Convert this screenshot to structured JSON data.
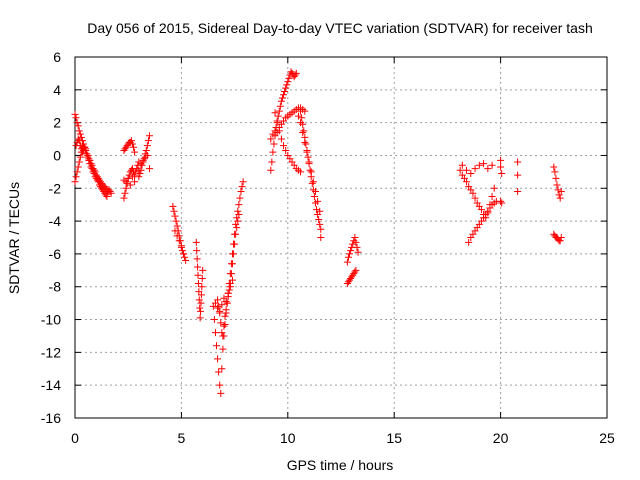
{
  "chart_data": {
    "type": "scatter",
    "title": "Day 056 of 2015, Sidereal Day-to-day VTEC variation (SDTVAR) for receiver tash",
    "xlabel": "GPS time / hours",
    "ylabel": "SDTVAR / TECUs",
    "xlim": [
      0,
      25
    ],
    "ylim": [
      -16,
      6
    ],
    "x_ticks": [
      0,
      5,
      10,
      15,
      20,
      25
    ],
    "y_ticks": [
      -16,
      -14,
      -12,
      -10,
      -8,
      -6,
      -4,
      -2,
      0,
      2,
      4,
      6
    ],
    "grid": true,
    "marker": "+",
    "color": "#ff0000",
    "series": [
      {
        "x": [
          0.0,
          0.05,
          0.1,
          0.15,
          0.2,
          0.25,
          0.3,
          0.35,
          0.4,
          0.45,
          0.5,
          0.55,
          0.6,
          0.65,
          0.7,
          0.75,
          0.8,
          0.85,
          0.9,
          0.95,
          1.0,
          1.05,
          1.1,
          1.15,
          1.2,
          1.25,
          1.3,
          1.35,
          1.4,
          1.45,
          1.5,
          1.55,
          1.6,
          1.65,
          1.7
        ],
        "y": [
          2.5,
          2.3,
          2.0,
          1.8,
          1.5,
          1.3,
          1.1,
          0.9,
          0.7,
          0.5,
          0.3,
          0.1,
          0.0,
          -0.2,
          -0.3,
          -0.5,
          -0.6,
          -0.8,
          -0.9,
          -1.0,
          -1.2,
          -1.3,
          -1.4,
          -1.5,
          -1.6,
          -1.7,
          -1.8,
          -1.9,
          -1.9,
          -2.0,
          -2.1,
          -2.2,
          -2.1,
          -2.2,
          -2.3
        ]
      },
      {
        "x": [
          0.0,
          0.05,
          0.1,
          0.15,
          0.2,
          0.25,
          0.3,
          0.35,
          0.4,
          0.45,
          0.5,
          0.55,
          0.6,
          0.65,
          0.7,
          0.75,
          0.8,
          0.85,
          0.9,
          0.95,
          1.0,
          1.05,
          1.1,
          1.15,
          1.2,
          1.25,
          1.3,
          1.35,
          1.4,
          1.45,
          1.5
        ],
        "y": [
          -1.6,
          -1.3,
          -1.0,
          -0.7,
          -0.4,
          -0.1,
          0.2,
          0.5,
          0.7,
          0.5,
          0.3,
          0.1,
          -0.1,
          -0.3,
          -0.5,
          -0.7,
          -0.8,
          -1.0,
          -1.1,
          -1.3,
          -1.4,
          -1.5,
          -1.6,
          -1.8,
          -1.9,
          -2.0,
          -2.1,
          -2.2,
          -2.3,
          -2.4,
          -2.5
        ]
      },
      {
        "x": [
          0.05,
          0.1,
          0.15,
          0.2,
          0.25,
          0.3,
          0.35,
          0.4,
          0.45,
          0.5
        ],
        "y": [
          0.6,
          0.8,
          1.0,
          0.9,
          0.6,
          0.4,
          0.2,
          0.3,
          0.5,
          0.4
        ]
      },
      {
        "x": [
          2.3,
          2.35,
          2.4,
          2.45,
          2.5,
          2.55,
          2.6,
          2.65,
          2.7,
          2.75,
          2.8,
          2.85,
          2.9,
          2.95,
          3.0
        ],
        "y": [
          -2.6,
          -2.3,
          -2.0,
          -1.7,
          -1.4,
          -1.2,
          -1.0,
          -0.9,
          -0.8,
          -1.0,
          -1.2,
          -1.0,
          -0.8,
          -0.6,
          -0.4
        ]
      },
      {
        "x": [
          2.3,
          2.35,
          2.4,
          2.45,
          2.5,
          2.55,
          2.6,
          2.65,
          2.7,
          2.75,
          2.8
        ],
        "y": [
          0.3,
          0.4,
          0.5,
          0.6,
          0.7,
          0.8,
          0.8,
          0.9,
          0.7,
          0.5,
          0.2
        ]
      },
      {
        "x": [
          2.3,
          2.4,
          2.5,
          2.6,
          2.7,
          2.8
        ],
        "y": [
          -1.5,
          -1.6,
          -1.4,
          -1.8,
          -1.3,
          -1.6
        ]
      },
      {
        "x": [
          3.0,
          3.05,
          3.1,
          3.15,
          3.2,
          3.25,
          3.3,
          3.35,
          3.4,
          3.45,
          3.5
        ],
        "y": [
          -1.3,
          -1.1,
          -0.9,
          -0.6,
          -0.4,
          -0.2,
          0.1,
          0.3,
          0.6,
          0.9,
          1.2
        ]
      },
      {
        "x": [
          3.0,
          3.1,
          3.2,
          3.3,
          3.4,
          3.5
        ],
        "y": [
          -0.9,
          -0.5,
          -0.3,
          -0.1,
          0.0,
          -0.8
        ]
      },
      {
        "x": [
          4.6,
          4.65,
          4.7,
          4.75,
          4.8,
          4.85,
          4.9,
          4.95,
          5.0,
          5.05,
          5.1,
          5.15,
          5.2
        ],
        "y": [
          -3.1,
          -3.4,
          -3.7,
          -4.0,
          -4.3,
          -4.6,
          -4.9,
          -5.2,
          -5.5,
          -5.8,
          -6.0,
          -6.2,
          -6.4
        ]
      },
      {
        "x": [
          4.7,
          4.8,
          4.9,
          5.0,
          5.1
        ],
        "y": [
          -4.6,
          -4.9,
          -5.2,
          -5.6,
          -6.0
        ]
      },
      {
        "x": [
          5.7,
          5.72,
          5.74,
          5.76,
          5.78,
          5.8,
          5.82,
          5.84,
          5.86,
          5.88,
          5.9,
          5.92,
          5.94,
          5.96,
          5.98,
          6.0
        ],
        "y": [
          -5.3,
          -5.8,
          -6.3,
          -6.8,
          -7.3,
          -7.8,
          -8.3,
          -8.8,
          -9.3,
          -9.9,
          -9.5,
          -9.0,
          -8.5,
          -8.0,
          -7.5,
          -7.0
        ]
      },
      {
        "x": [
          6.5,
          6.55,
          6.6,
          6.65,
          6.7,
          6.75,
          6.8,
          6.85,
          6.9,
          6.95,
          7.0,
          7.05,
          7.1,
          7.15,
          7.2,
          7.25,
          7.3,
          7.35,
          7.4,
          7.45,
          7.5,
          7.55,
          7.6,
          7.65,
          7.7,
          7.75,
          7.8,
          7.85,
          7.9
        ],
        "y": [
          -9.2,
          -10.0,
          -10.8,
          -11.6,
          -12.4,
          -13.2,
          -14.0,
          -14.5,
          -13.0,
          -11.8,
          -11.0,
          -10.3,
          -9.6,
          -9.0,
          -8.4,
          -7.8,
          -7.2,
          -6.6,
          -6.0,
          -5.4,
          -4.8,
          -4.2,
          -3.8,
          -3.4,
          -3.0,
          -2.6,
          -2.2,
          -1.9,
          -1.6
        ]
      },
      {
        "x": [
          6.7,
          6.75,
          6.8,
          6.85,
          6.9,
          6.95,
          7.0,
          7.05,
          7.1,
          7.15,
          7.2,
          7.25,
          7.3,
          7.35,
          7.4,
          7.45,
          7.5,
          7.55,
          7.6,
          7.65,
          7.7
        ],
        "y": [
          -8.8,
          -9.2,
          -9.6,
          -10.2,
          -10.8,
          -11.0,
          -10.4,
          -9.8,
          -9.4,
          -9.0,
          -8.6,
          -8.2,
          -7.8,
          -7.2,
          -6.6,
          -6.0,
          -5.4,
          -4.8,
          -4.4,
          -4.0,
          -3.6
        ]
      },
      {
        "x": [
          6.6,
          6.7,
          6.8,
          6.9,
          7.0,
          7.1,
          7.2,
          7.3,
          7.4
        ],
        "y": [
          -9.0,
          -9.3,
          -9.5,
          -9.1,
          -8.7,
          -8.9,
          -8.4,
          -8.0,
          -7.6
        ]
      },
      {
        "x": [
          9.2,
          9.25,
          9.3,
          9.35,
          9.4,
          9.45,
          9.5,
          9.55,
          9.6,
          9.65,
          9.7,
          9.75,
          9.8,
          9.85,
          9.9,
          9.95,
          10.0,
          10.05,
          10.1,
          10.15,
          10.2,
          10.25,
          10.3,
          10.35,
          10.4
        ],
        "y": [
          -0.9,
          -0.4,
          0.2,
          0.7,
          1.2,
          1.7,
          2.1,
          2.4,
          2.7,
          3.0,
          3.3,
          3.5,
          3.7,
          3.9,
          4.1,
          4.3,
          4.5,
          4.7,
          4.9,
          5.1,
          5.0,
          4.9,
          4.8,
          4.9,
          5.0
        ]
      },
      {
        "x": [
          9.2,
          9.3,
          9.4,
          9.5,
          9.6,
          9.7,
          9.8,
          9.9,
          10.0,
          10.1,
          10.2,
          10.3,
          10.4,
          10.5,
          10.6,
          10.7,
          10.8
        ],
        "y": [
          1.0,
          1.3,
          1.5,
          1.4,
          1.7,
          1.9,
          2.1,
          2.3,
          2.4,
          2.5,
          2.6,
          2.7,
          2.8,
          2.9,
          2.9,
          2.8,
          2.7
        ]
      },
      {
        "x": [
          9.4,
          9.5,
          9.6,
          9.7,
          9.8,
          9.9,
          10.0,
          10.1,
          10.2,
          10.3,
          10.4,
          10.5,
          10.6
        ],
        "y": [
          2.6,
          2.0,
          1.5,
          1.0,
          0.6,
          0.3,
          0.0,
          -0.2,
          -0.4,
          -0.6,
          -0.8,
          -0.9,
          -1.0
        ]
      },
      {
        "x": [
          10.6,
          10.65,
          10.7,
          10.75,
          10.8,
          10.85,
          10.9,
          10.95,
          11.0,
          11.05,
          11.1,
          11.15,
          11.2,
          11.25,
          11.3,
          11.35,
          11.4,
          11.45,
          11.5,
          11.55
        ],
        "y": [
          2.7,
          2.3,
          1.9,
          1.5,
          1.1,
          0.7,
          0.3,
          -0.1,
          -0.5,
          -0.9,
          -1.3,
          -1.7,
          -2.1,
          -2.5,
          -2.9,
          -3.3,
          -3.6,
          -3.9,
          -4.2,
          -4.5
        ]
      },
      {
        "x": [
          10.5,
          10.6,
          10.7,
          10.8,
          10.9,
          11.0,
          11.1,
          11.2,
          11.3,
          11.4,
          11.5,
          11.55
        ],
        "y": [
          2.4,
          2.0,
          1.4,
          0.8,
          0.2,
          -0.4,
          -1.0,
          -1.6,
          -2.2,
          -2.8,
          -3.4,
          -5.0
        ]
      },
      {
        "x": [
          12.8,
          12.85,
          12.9,
          12.95,
          13.0,
          13.05,
          13.1,
          13.15,
          13.2,
          13.25,
          13.3
        ],
        "y": [
          -6.5,
          -6.2,
          -6.0,
          -5.8,
          -5.6,
          -5.4,
          -5.2,
          -5.0,
          -5.3,
          -5.6,
          -5.9
        ]
      },
      {
        "x": [
          12.8,
          12.85,
          12.9,
          12.95,
          13.0,
          13.05,
          13.1,
          13.15,
          13.2
        ],
        "y": [
          -7.8,
          -7.7,
          -7.6,
          -7.5,
          -7.4,
          -7.3,
          -7.2,
          -7.1,
          -7.0
        ]
      },
      {
        "x": [
          18.1,
          18.2,
          18.3,
          18.4,
          18.5,
          18.6,
          18.7,
          18.8,
          18.9,
          19.0,
          19.1,
          19.2,
          19.3,
          19.4,
          19.5,
          19.6,
          19.7
        ],
        "y": [
          -0.9,
          -1.2,
          -1.4,
          -1.6,
          -1.9,
          -2.1,
          -2.3,
          -2.6,
          -2.9,
          -3.1,
          -3.3,
          -3.6,
          -3.8,
          -3.5,
          -3.0,
          -2.5,
          -2.0
        ]
      },
      {
        "x": [
          18.5,
          18.6,
          18.7,
          18.8,
          18.9,
          19.0,
          19.1,
          19.2,
          19.3,
          19.4,
          19.5,
          19.6,
          19.7,
          19.8
        ],
        "y": [
          -5.3,
          -5.0,
          -4.8,
          -4.6,
          -4.4,
          -4.2,
          -4.0,
          -3.8,
          -3.6,
          -3.4,
          -3.2,
          -3.0,
          -2.9,
          -2.8
        ]
      },
      {
        "x": [
          18.2,
          18.4,
          18.6,
          18.8,
          19.0,
          19.2,
          19.4,
          19.6
        ],
        "y": [
          -0.6,
          -0.9,
          -1.1,
          -0.8,
          -0.6,
          -0.5,
          -0.8,
          -0.6
        ]
      },
      {
        "x": [
          20.0,
          20.0,
          20.05,
          20.0,
          20.05,
          20.8,
          20.8,
          20.8
        ],
        "y": [
          -0.3,
          -0.7,
          -1.1,
          -2.8,
          -2.9,
          -0.4,
          -1.2,
          -2.2
        ]
      },
      {
        "x": [
          22.5,
          22.55,
          22.6,
          22.65,
          22.7,
          22.75,
          22.8,
          22.85
        ],
        "y": [
          -0.7,
          -1.0,
          -1.4,
          -1.8,
          -2.1,
          -2.4,
          -2.6,
          -2.2
        ]
      },
      {
        "x": [
          22.5,
          22.55,
          22.6,
          22.65,
          22.7,
          22.75,
          22.8,
          22.85
        ],
        "y": [
          -4.8,
          -4.9,
          -5.0,
          -5.0,
          -5.1,
          -5.2,
          -5.2,
          -5.0
        ]
      }
    ]
  }
}
